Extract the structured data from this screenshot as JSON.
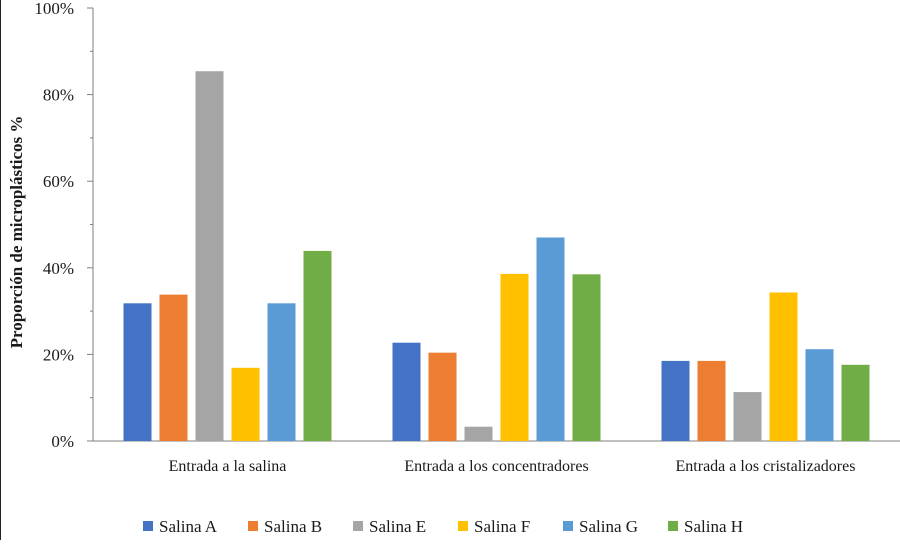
{
  "chart_data": {
    "type": "bar",
    "title": "",
    "xlabel": "",
    "ylabel": "Proporción de microplásticos %",
    "ylim": [
      0,
      100
    ],
    "yticks": [
      "0%",
      "20%",
      "40%",
      "60%",
      "80%",
      "100%"
    ],
    "ytick_values": [
      0,
      20,
      40,
      60,
      80,
      100
    ],
    "grid": false,
    "legend_position": "bottom",
    "categories": [
      "Entrada a la salina",
      "Entrada a los concentradores",
      "Entrada a los cristalizadores"
    ],
    "series": [
      {
        "name": "Salina A",
        "color": "#4472C4",
        "values": [
          31.8,
          22.7,
          18.5
        ]
      },
      {
        "name": "Salina B",
        "color": "#ED7D31",
        "values": [
          33.8,
          20.4,
          18.5
        ]
      },
      {
        "name": "Salina E",
        "color": "#A5A5A5",
        "values": [
          85.4,
          3.3,
          11.3
        ]
      },
      {
        "name": "Salina F",
        "color": "#FFC000",
        "values": [
          16.9,
          38.6,
          34.3
        ]
      },
      {
        "name": "Salina G",
        "color": "#5B9BD5",
        "values": [
          31.8,
          47.0,
          21.2
        ]
      },
      {
        "name": "Salina H",
        "color": "#70AD47",
        "values": [
          43.9,
          38.5,
          17.6
        ]
      }
    ]
  }
}
